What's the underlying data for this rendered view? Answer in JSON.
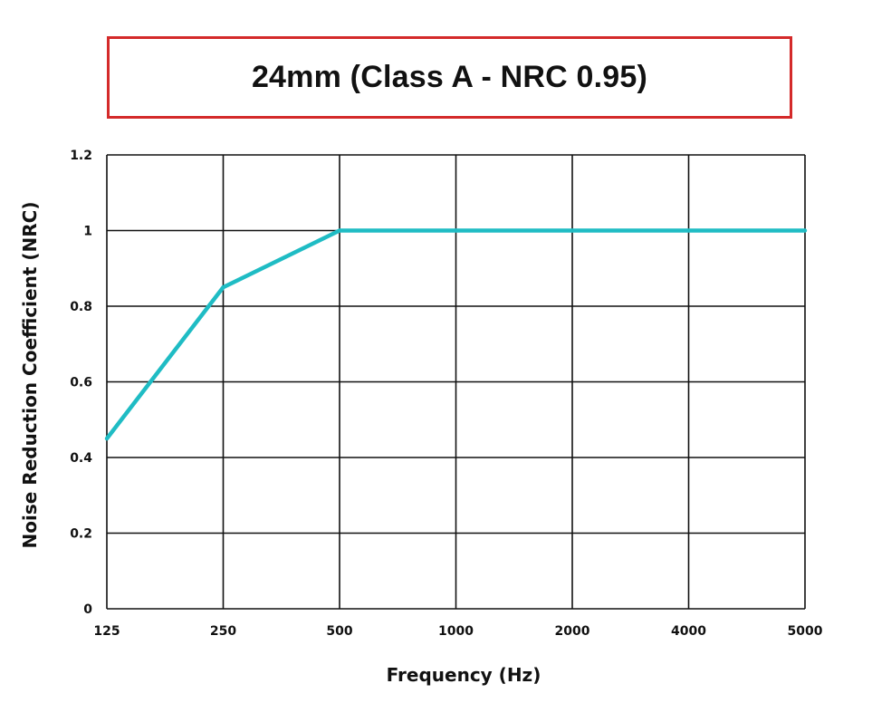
{
  "chart_data": {
    "type": "line",
    "title": "24mm (Class A - NRC 0.95)",
    "xlabel": "Frequency (Hz)",
    "ylabel": "Noise Reduction Coefficient (NRC)",
    "x_scale": "categorical",
    "categories": [
      "125",
      "250",
      "500",
      "1000",
      "2000",
      "4000",
      "5000"
    ],
    "yticks": [
      "0",
      "0.2",
      "0.4",
      "0.6",
      "0.8",
      "1",
      "1.2"
    ],
    "ylim": [
      0,
      1.2
    ],
    "grid": true,
    "legend": "none",
    "series": [
      {
        "values": [
          0.45,
          0.85,
          1.0,
          1.0,
          1.0,
          1.0,
          1.0
        ],
        "color": "#1fbcc4"
      }
    ],
    "colors": {
      "title_border": "#d42a2a",
      "grid": "#111111",
      "line": "#1fbcc4"
    }
  }
}
